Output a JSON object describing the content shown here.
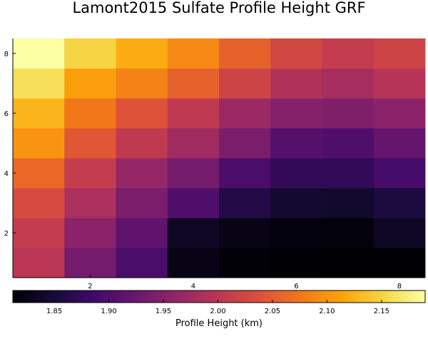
{
  "chart_data": {
    "type": "heatmap",
    "title": "Lamont2015 Sulfate Profile Height GRF",
    "xlabel": "",
    "ylabel": "",
    "x": [
      1,
      2,
      3,
      4,
      5,
      6,
      7,
      8
    ],
    "y": [
      1,
      2,
      3,
      4,
      5,
      6,
      7,
      8
    ],
    "xlim": [
      0.5,
      8.5
    ],
    "ylim": [
      0.5,
      8.5
    ],
    "x_ticks": [
      "2",
      "4",
      "6",
      "8"
    ],
    "y_ticks": [
      "2",
      "4",
      "6",
      "8"
    ],
    "z_rows_bottom_to_top": [
      [
        2.0,
        1.935,
        1.895,
        1.825,
        1.815,
        1.813,
        1.812,
        1.812
      ],
      [
        2.01,
        1.955,
        1.915,
        1.835,
        1.825,
        1.82,
        1.818,
        1.835
      ],
      [
        2.03,
        1.985,
        1.94,
        1.9,
        1.86,
        1.845,
        1.842,
        1.855
      ],
      [
        2.06,
        2.01,
        1.965,
        1.935,
        1.895,
        1.875,
        1.875,
        1.89
      ],
      [
        2.1,
        2.045,
        2.005,
        1.975,
        1.94,
        1.905,
        1.9,
        1.92
      ],
      [
        2.125,
        2.075,
        2.04,
        2.005,
        1.97,
        1.95,
        1.945,
        1.955
      ],
      [
        2.16,
        2.11,
        2.085,
        2.055,
        2.02,
        1.99,
        1.98,
        1.995
      ],
      [
        2.19,
        2.15,
        2.12,
        2.09,
        2.055,
        2.025,
        2.01,
        2.02
      ]
    ],
    "colorbar": {
      "label": "Profile Height (km)",
      "colormap": "inferno",
      "zlim": [
        1.812,
        2.19
      ],
      "ticks": [
        "1.85",
        "1.90",
        "1.95",
        "2.00",
        "2.05",
        "2.10",
        "2.15"
      ]
    },
    "grid": false,
    "legend": "colorbar-bottom"
  }
}
